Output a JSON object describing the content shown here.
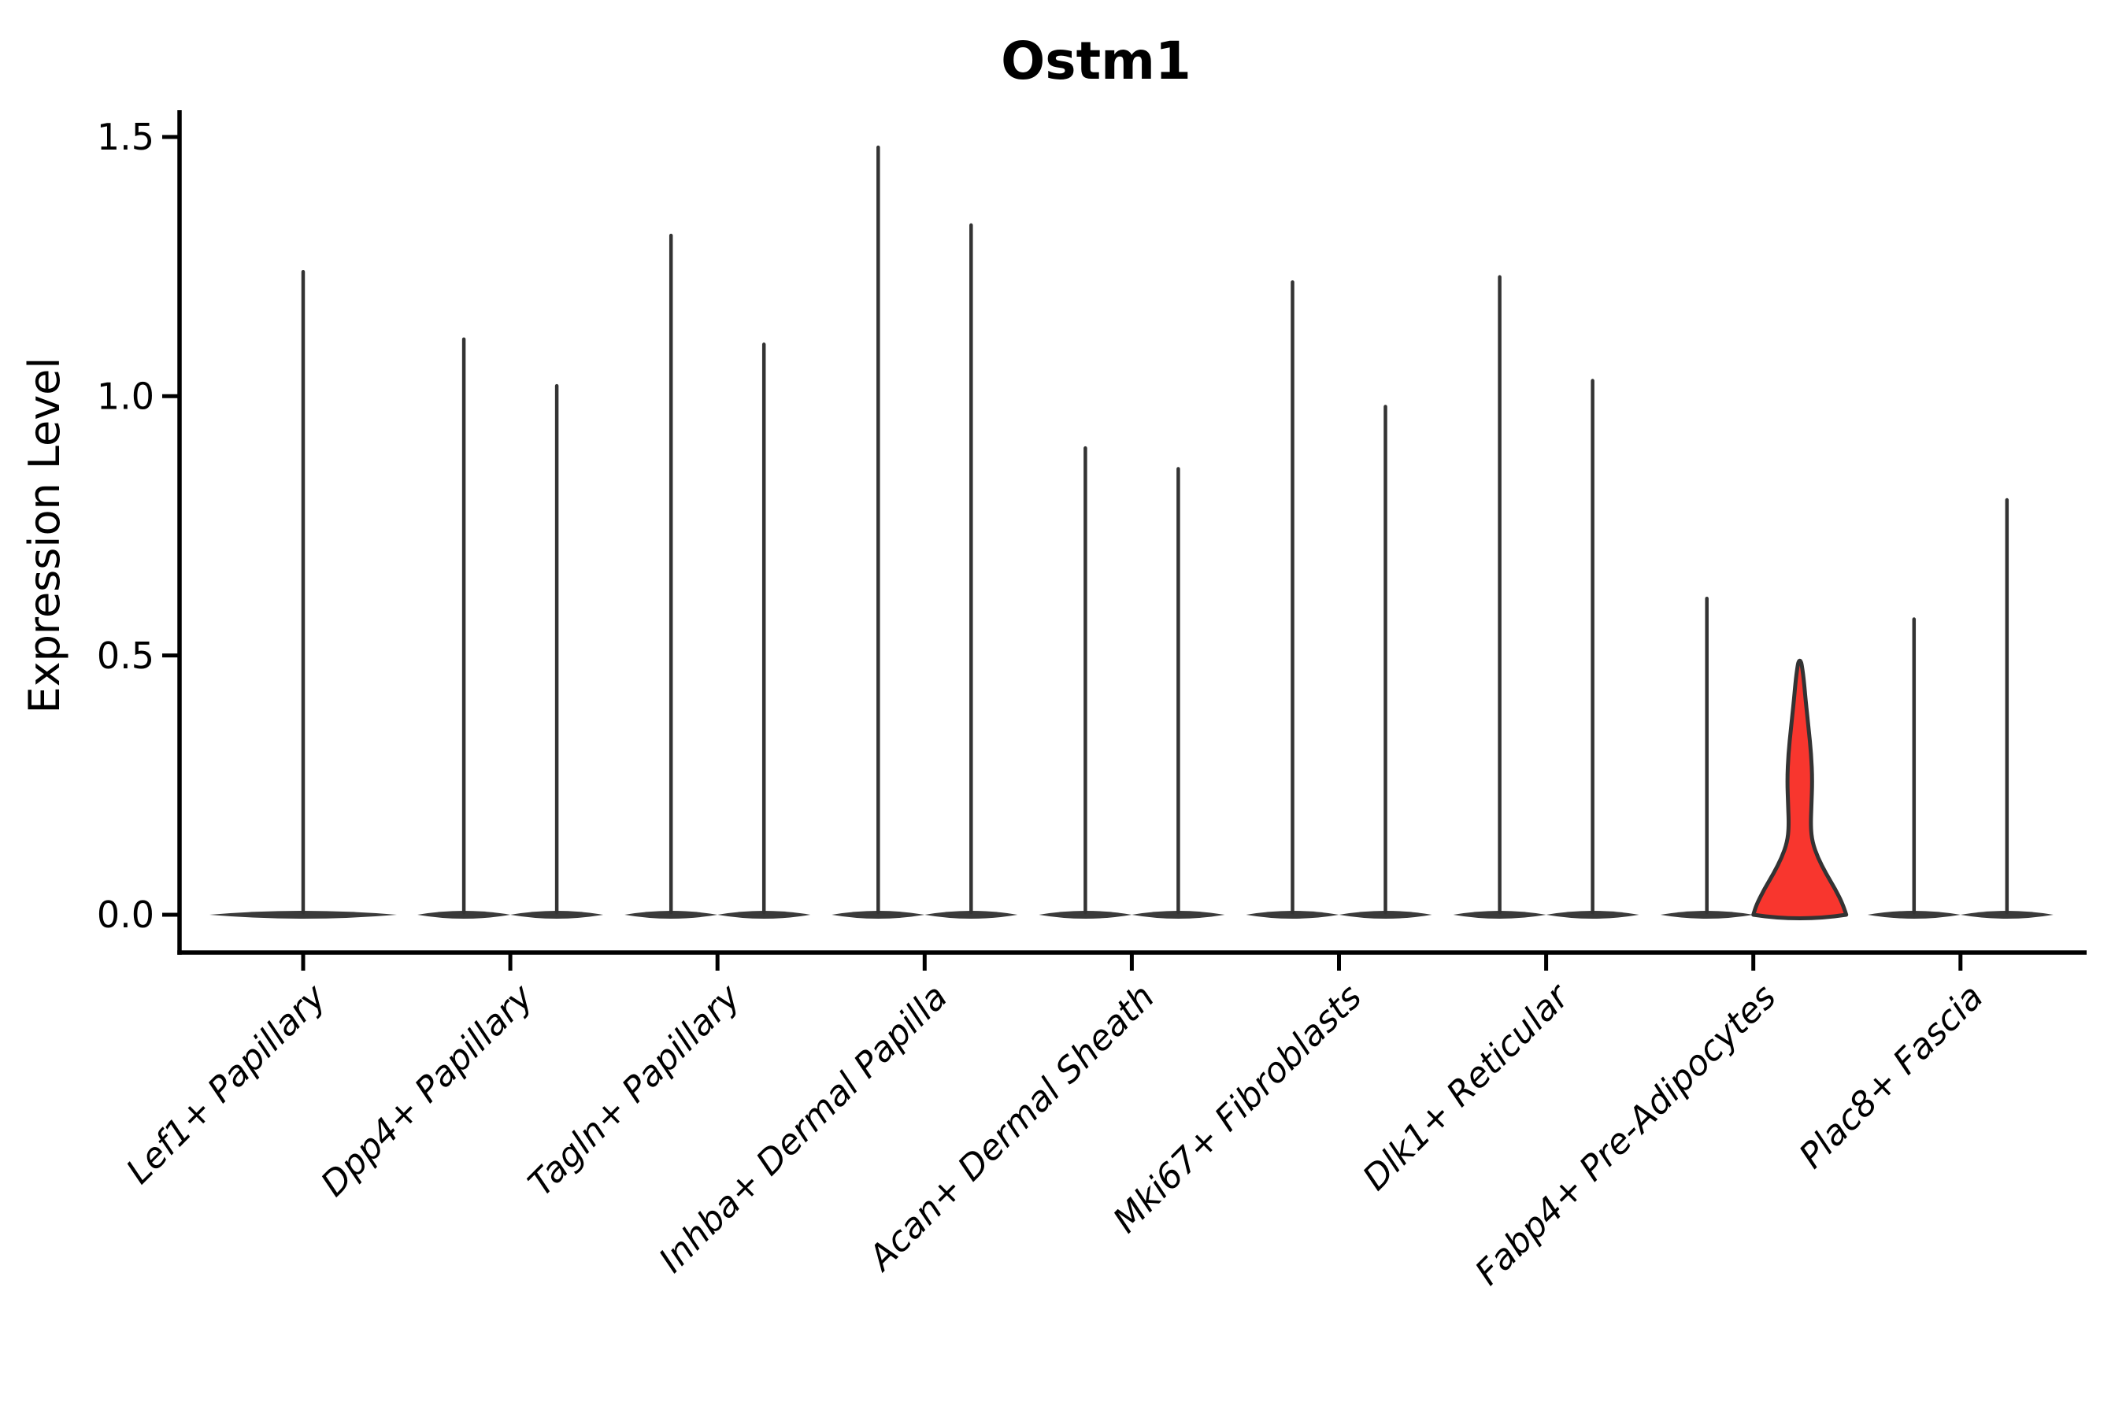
{
  "chart_data": {
    "type": "violin",
    "title": "Ostm1",
    "ylabel": "Expression Level",
    "xlabel": "",
    "ylim": [
      0,
      1.55
    ],
    "yticks": [
      0.0,
      0.5,
      1.0,
      1.5
    ],
    "ytick_labels": [
      "0.0",
      "0.5",
      "1.0",
      "1.5"
    ],
    "grid": false,
    "legend": "none",
    "categories": [
      "Lef1+ Papillary",
      "Dpp4+ Papillary",
      "Tagln+ Papillary",
      "Inhba+ Dermal Papilla",
      "Acan+ Dermal Sheath",
      "Mki67+ Fibroblasts",
      "Dlk1+ Reticular",
      "Fabp4+ Pre-Adipocytes",
      "Plac8+ Fascia"
    ],
    "violins": [
      {
        "category": "Lef1+ Papillary",
        "parts": [
          {
            "position": "center",
            "width": "full",
            "max_expression": 1.24,
            "filled": false
          }
        ]
      },
      {
        "category": "Dpp4+ Papillary",
        "parts": [
          {
            "position": "left",
            "max_expression": 1.11,
            "filled": false
          },
          {
            "position": "right",
            "max_expression": 1.02,
            "filled": false
          }
        ]
      },
      {
        "category": "Tagln+ Papillary",
        "parts": [
          {
            "position": "left",
            "max_expression": 1.31,
            "filled": false
          },
          {
            "position": "right",
            "max_expression": 1.1,
            "filled": false
          }
        ]
      },
      {
        "category": "Inhba+ Dermal Papilla",
        "parts": [
          {
            "position": "left",
            "max_expression": 1.48,
            "filled": false
          },
          {
            "position": "right",
            "max_expression": 1.33,
            "filled": false
          }
        ]
      },
      {
        "category": "Acan+ Dermal Sheath",
        "parts": [
          {
            "position": "left",
            "max_expression": 0.9,
            "filled": false
          },
          {
            "position": "right",
            "max_expression": 0.86,
            "filled": false
          }
        ]
      },
      {
        "category": "Mki67+ Fibroblasts",
        "parts": [
          {
            "position": "left",
            "max_expression": 1.22,
            "filled": false
          },
          {
            "position": "right",
            "max_expression": 0.98,
            "filled": false
          }
        ]
      },
      {
        "category": "Dlk1+ Reticular",
        "parts": [
          {
            "position": "left",
            "max_expression": 1.23,
            "filled": false
          },
          {
            "position": "right",
            "max_expression": 1.03,
            "filled": false
          }
        ]
      },
      {
        "category": "Fabp4+ Pre-Adipocytes",
        "parts": [
          {
            "position": "left",
            "max_expression": 0.61,
            "filled": false
          },
          {
            "position": "right",
            "max_expression": 0.49,
            "filled": true,
            "highlight": true
          }
        ]
      },
      {
        "category": "Plac8+ Fascia",
        "parts": [
          {
            "position": "left",
            "max_expression": 0.57,
            "filled": false
          },
          {
            "position": "right",
            "max_expression": 0.8,
            "filled": false
          }
        ]
      }
    ],
    "highlight_profile_value_halfwidth": [
      [
        0.0,
        1.0
      ],
      [
        0.02,
        0.93
      ],
      [
        0.05,
        0.76
      ],
      [
        0.08,
        0.56
      ],
      [
        0.11,
        0.39
      ],
      [
        0.14,
        0.27
      ],
      [
        0.17,
        0.235
      ],
      [
        0.21,
        0.25
      ],
      [
        0.26,
        0.27
      ],
      [
        0.31,
        0.245
      ],
      [
        0.36,
        0.19
      ],
      [
        0.41,
        0.13
      ],
      [
        0.45,
        0.09
      ],
      [
        0.475,
        0.055
      ],
      [
        0.49,
        0.025
      ]
    ],
    "colors": {
      "highlight_fill": "#F8362E",
      "violin_stroke": "#333333",
      "violin_base_fill": "#3A3A3A",
      "axis": "#000000",
      "text": "#000000",
      "background": "#FFFFFF"
    }
  }
}
